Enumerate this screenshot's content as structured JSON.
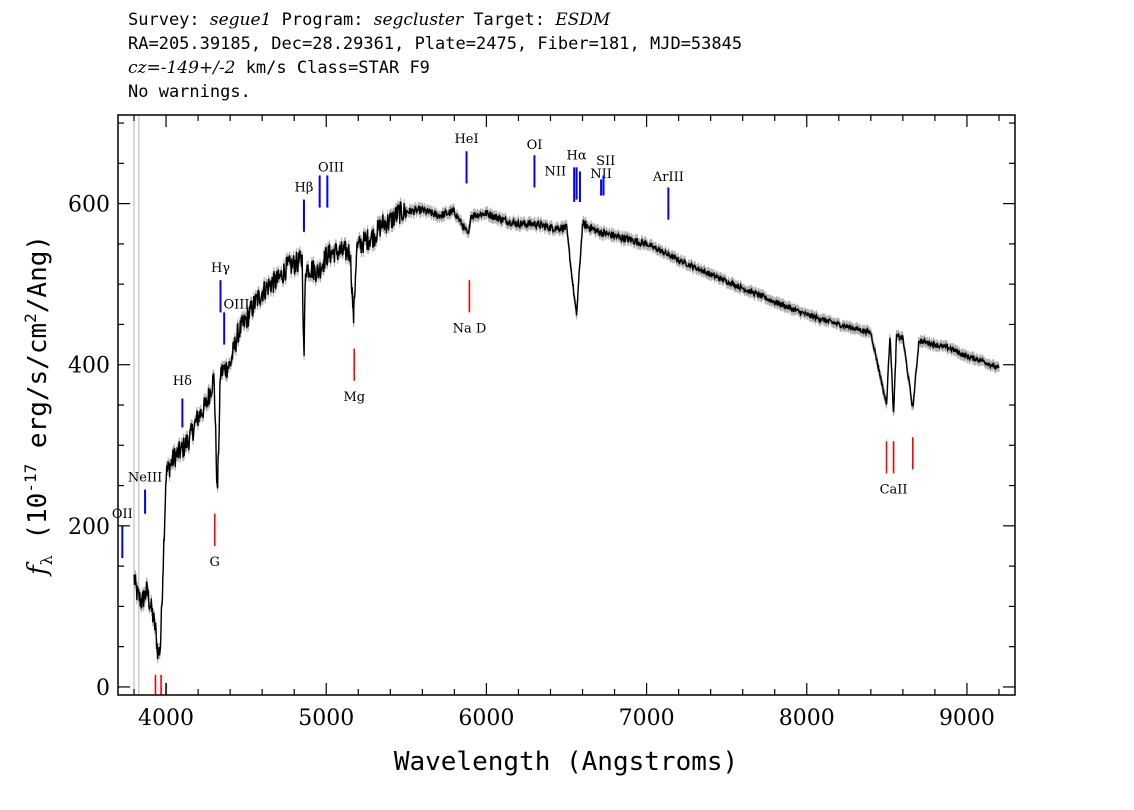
{
  "header": {
    "line1": {
      "survey_label": "Survey: ",
      "survey": "segue1",
      "program_label": " Program: ",
      "program": "segcluster",
      "target_label": " Target: ",
      "target": "ESDM"
    },
    "line2": "RA=205.39185, Dec=28.29361, Plate=2475, Fiber=181, MJD=53845",
    "line3": {
      "cz": "cz=-149+/-2",
      "rest": " km/s Class=STAR F9"
    },
    "line4": "No warnings."
  },
  "chart_data": {
    "type": "line",
    "xlabel": "Wavelength (Angstroms)",
    "ylabel_parts": {
      "f": "f",
      "sub": "λ",
      "pre": " (10",
      "exp1": "-17",
      "mid": " erg/s/cm",
      "exp2": "2",
      "post": "/Ang)"
    },
    "xlim": [
      3700,
      9300
    ],
    "ylim": [
      -10,
      710
    ],
    "x_ticks": [
      4000,
      5000,
      6000,
      7000,
      8000,
      9000
    ],
    "y_ticks": [
      0,
      200,
      400,
      600
    ],
    "grid": false,
    "series_color": "#000000",
    "error_color": "#b4b4b4",
    "vertical_marker_lines_x": [
      3800,
      3830
    ],
    "spectrum_anchor_points": {
      "x": [
        3800,
        3820,
        3850,
        3880,
        3910,
        3935,
        3950,
        3965,
        3975,
        4000,
        4050,
        4102,
        4150,
        4200,
        4250,
        4300,
        4320,
        4340,
        4400,
        4450,
        4500,
        4550,
        4600,
        4650,
        4700,
        4750,
        4800,
        4850,
        4861,
        4870,
        4900,
        4950,
        5000,
        5050,
        5100,
        5150,
        5170,
        5190,
        5250,
        5300,
        5350,
        5400,
        5450,
        5500,
        5600,
        5700,
        5800,
        5890,
        5900,
        6000,
        6100,
        6200,
        6300,
        6400,
        6500,
        6562,
        6600,
        6700,
        6800,
        6900,
        7000,
        7200,
        7400,
        7600,
        7800,
        8000,
        8200,
        8400,
        8498,
        8520,
        8542,
        8560,
        8600,
        8662,
        8700,
        8800,
        8900,
        9000,
        9100,
        9200
      ],
      "y": [
        135,
        115,
        105,
        120,
        95,
        70,
        40,
        50,
        110,
        265,
        285,
        295,
        310,
        335,
        350,
        385,
        235,
        390,
        400,
        440,
        455,
        475,
        490,
        500,
        505,
        520,
        525,
        530,
        400,
        520,
        520,
        515,
        535,
        540,
        540,
        540,
        455,
        545,
        555,
        560,
        575,
        578,
        588,
        590,
        592,
        585,
        590,
        560,
        585,
        588,
        580,
        575,
        575,
        570,
        570,
        460,
        575,
        565,
        560,
        555,
        550,
        530,
        512,
        495,
        478,
        462,
        450,
        440,
        350,
        440,
        335,
        435,
        433,
        345,
        430,
        425,
        420,
        410,
        405,
        395
      ]
    },
    "emission_lines": [
      {
        "label": "OII",
        "x": 3727,
        "y_low": 160,
        "y_high": 200,
        "color": "#0000ff",
        "label_x": 3727,
        "label_y": 210
      },
      {
        "label": "NeIII",
        "x": 3869,
        "y_low": 215,
        "y_high": 245,
        "color": "#0000ff",
        "label_x": 3869,
        "label_y": 255
      },
      {
        "label": "Hδ",
        "x": 4102,
        "y_low": 322,
        "y_high": 358,
        "color": "#0000ff",
        "label_x": 4102,
        "label_y": 375
      },
      {
        "label": "Hγ",
        "x": 4340,
        "y_low": 465,
        "y_high": 505,
        "color": "#0000ff",
        "label_x": 4340,
        "label_y": 515
      },
      {
        "label": "OIII",
        "x": 4363,
        "y_low": 425,
        "y_high": 465,
        "color": "#0000ff",
        "label_x": 4440,
        "label_y": 470
      },
      {
        "label": "Hβ",
        "x": 4861,
        "y_low": 565,
        "y_high": 605,
        "color": "#0000ff",
        "label_x": 4861,
        "label_y": 615
      },
      {
        "label": "OIII",
        "x": 4959,
        "y_low": 595,
        "y_high": 635,
        "color": "#0000ff",
        "label_x": 5030,
        "label_y": 640
      },
      {
        "label": "",
        "x": 5007,
        "y_low": 595,
        "y_high": 635,
        "color": "#0000ff",
        "label_x": 5007,
        "label_y": 640
      },
      {
        "label": "HeI",
        "x": 5876,
        "y_low": 625,
        "y_high": 665,
        "color": "#0000ff",
        "label_x": 5876,
        "label_y": 675
      },
      {
        "label": "OI",
        "x": 6300,
        "y_low": 620,
        "y_high": 660,
        "color": "#0000ff",
        "label_x": 6300,
        "label_y": 668
      },
      {
        "label": "NII",
        "x": 6548,
        "y_low": 602,
        "y_high": 645,
        "color": "#0000ff",
        "label_x": 6430,
        "label_y": 635
      },
      {
        "label": "Hα",
        "x": 6563,
        "y_low": 605,
        "y_high": 645,
        "color": "#0000ff",
        "label_x": 6563,
        "label_y": 655
      },
      {
        "label": "",
        "x": 6584,
        "y_low": 602,
        "y_high": 640,
        "color": "#0000ff",
        "label_x": 6584,
        "label_y": 640
      },
      {
        "label": "NII",
        "x": 6716,
        "y_low": 610,
        "y_high": 630,
        "color": "#0000ff",
        "label_x": 6716,
        "label_y": 632
      },
      {
        "label": "SII",
        "x": 6731,
        "y_low": 610,
        "y_high": 635,
        "color": "#0000ff",
        "label_x": 6745,
        "label_y": 648
      },
      {
        "label": "ArIII",
        "x": 7136,
        "y_low": 580,
        "y_high": 620,
        "color": "#0000ff",
        "label_x": 7136,
        "label_y": 628
      }
    ],
    "absorption_lines": [
      {
        "label": "",
        "x": 3934,
        "y_low": -10,
        "y_high": 15,
        "color": "#ff0000",
        "label_x": 3934,
        "label_y": -20
      },
      {
        "label": "",
        "x": 3969,
        "y_low": -10,
        "y_high": 15,
        "color": "#ff0000",
        "label_x": 3969,
        "label_y": -20
      },
      {
        "label": "",
        "x": 4000,
        "y_low": -10,
        "y_high": 5,
        "color": "#ff0000",
        "label_x": 4000,
        "label_y": -20
      },
      {
        "label": "G",
        "x": 4304,
        "y_low": 175,
        "y_high": 215,
        "color": "#ff0000",
        "label_x": 4304,
        "label_y": 150
      },
      {
        "label": "Mg",
        "x": 5175,
        "y_low": 380,
        "y_high": 420,
        "color": "#ff0000",
        "label_x": 5175,
        "label_y": 355
      },
      {
        "label": "Na D",
        "x": 5894,
        "y_low": 465,
        "y_high": 505,
        "color": "#ff0000",
        "label_x": 5894,
        "label_y": 440
      },
      {
        "label": "CaII",
        "x": 8498,
        "y_low": 265,
        "y_high": 305,
        "color": "#ff0000",
        "label_x": 8542,
        "label_y": 240
      },
      {
        "label": "",
        "x": 8542,
        "y_low": 265,
        "y_high": 305,
        "color": "#ff0000",
        "label_x": 8542,
        "label_y": 240
      },
      {
        "label": "",
        "x": 8662,
        "y_low": 270,
        "y_high": 310,
        "color": "#ff0000",
        "label_x": 8662,
        "label_y": 240
      }
    ]
  }
}
